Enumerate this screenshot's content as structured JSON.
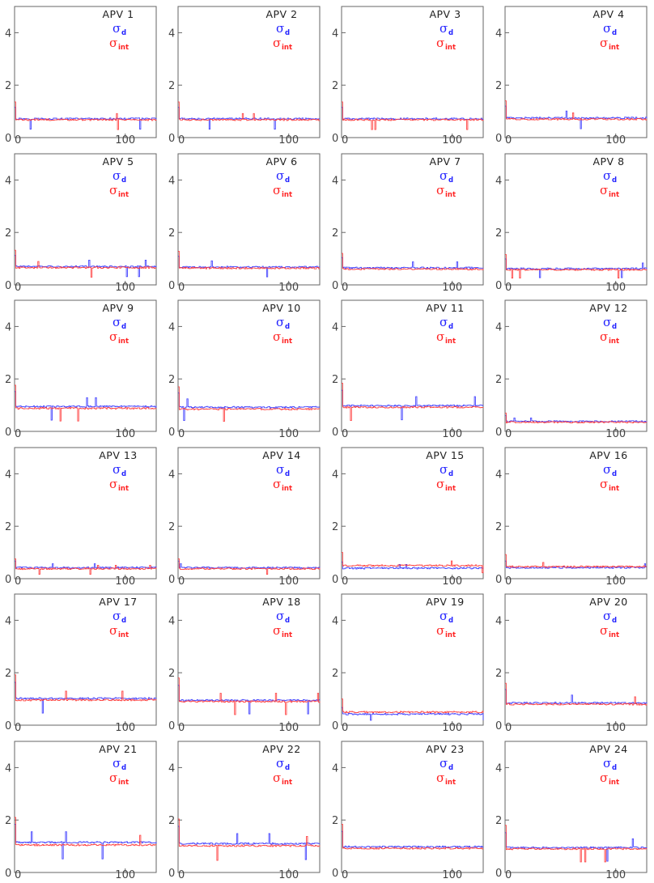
{
  "legend": {
    "sigma_symbol": "σ",
    "d_sub": "d",
    "int_sub": "int",
    "d_color": "#3333ff",
    "int_color": "#ff3333"
  },
  "chart_data": [
    {
      "type": "line",
      "title": "APV 1",
      "ylim": [
        0,
        5
      ],
      "xlim": [
        0,
        128
      ],
      "yticks": [
        "0",
        "2",
        "4"
      ],
      "xticks": [
        "0",
        "100"
      ],
      "series": [
        {
          "name": "σd",
          "color": "#3333ff",
          "baseline": 0.72
        },
        {
          "name": "σint",
          "color": "#ff3333",
          "baseline": 0.68
        }
      ]
    },
    {
      "type": "line",
      "title": "APV 2",
      "ylim": [
        0,
        5
      ],
      "xlim": [
        0,
        128
      ],
      "yticks": [
        "0",
        "2",
        "4"
      ],
      "xticks": [
        "0",
        "100"
      ],
      "series": [
        {
          "name": "σd",
          "color": "#3333ff",
          "baseline": 0.72
        },
        {
          "name": "σint",
          "color": "#ff3333",
          "baseline": 0.68
        }
      ]
    },
    {
      "type": "line",
      "title": "APV 3",
      "ylim": [
        0,
        5
      ],
      "xlim": [
        0,
        128
      ],
      "yticks": [
        "0",
        "2",
        "4"
      ],
      "xticks": [
        "0",
        "100"
      ],
      "series": [
        {
          "name": "σd",
          "color": "#3333ff",
          "baseline": 0.72
        },
        {
          "name": "σint",
          "color": "#ff3333",
          "baseline": 0.68
        }
      ]
    },
    {
      "type": "line",
      "title": "APV 4",
      "ylim": [
        0,
        5
      ],
      "xlim": [
        0,
        128
      ],
      "yticks": [
        "0",
        "2",
        "4"
      ],
      "xticks": [
        "0",
        "100"
      ],
      "series": [
        {
          "name": "σd",
          "color": "#3333ff",
          "baseline": 0.75
        },
        {
          "name": "σint",
          "color": "#ff3333",
          "baseline": 0.7
        }
      ]
    },
    {
      "type": "line",
      "title": "APV 5",
      "ylim": [
        0,
        5
      ],
      "xlim": [
        0,
        128
      ],
      "yticks": [
        "0",
        "2",
        "4"
      ],
      "xticks": [
        "0",
        "100"
      ],
      "series": [
        {
          "name": "σd",
          "color": "#3333ff",
          "baseline": 0.7
        },
        {
          "name": "σint",
          "color": "#ff3333",
          "baseline": 0.66
        }
      ]
    },
    {
      "type": "line",
      "title": "APV 6",
      "ylim": [
        0,
        5
      ],
      "xlim": [
        0,
        128
      ],
      "yticks": [
        "0",
        "2",
        "4"
      ],
      "xticks": [
        "0",
        "100"
      ],
      "series": [
        {
          "name": "σd",
          "color": "#3333ff",
          "baseline": 0.68
        },
        {
          "name": "σint",
          "color": "#ff3333",
          "baseline": 0.64
        }
      ]
    },
    {
      "type": "line",
      "title": "APV 7",
      "ylim": [
        0,
        5
      ],
      "xlim": [
        0,
        128
      ],
      "yticks": [
        "0",
        "2",
        "4"
      ],
      "xticks": [
        "0",
        "100"
      ],
      "series": [
        {
          "name": "σd",
          "color": "#3333ff",
          "baseline": 0.65
        },
        {
          "name": "σint",
          "color": "#ff3333",
          "baseline": 0.6
        }
      ]
    },
    {
      "type": "line",
      "title": "APV 8",
      "ylim": [
        0,
        5
      ],
      "xlim": [
        0,
        128
      ],
      "yticks": [
        "0",
        "2",
        "4"
      ],
      "xticks": [
        "0",
        "100"
      ],
      "series": [
        {
          "name": "σd",
          "color": "#3333ff",
          "baseline": 0.62
        },
        {
          "name": "σint",
          "color": "#ff3333",
          "baseline": 0.58
        }
      ]
    },
    {
      "type": "line",
      "title": "APV 9",
      "ylim": [
        0,
        5
      ],
      "xlim": [
        0,
        128
      ],
      "yticks": [
        "0",
        "2",
        "4"
      ],
      "xticks": [
        "0",
        "100"
      ],
      "series": [
        {
          "name": "σd",
          "color": "#3333ff",
          "baseline": 0.95
        },
        {
          "name": "σint",
          "color": "#ff3333",
          "baseline": 0.88
        }
      ]
    },
    {
      "type": "line",
      "title": "APV 10",
      "ylim": [
        0,
        5
      ],
      "xlim": [
        0,
        128
      ],
      "yticks": [
        "0",
        "2",
        "4"
      ],
      "xticks": [
        "0",
        "100"
      ],
      "series": [
        {
          "name": "σd",
          "color": "#3333ff",
          "baseline": 0.92
        },
        {
          "name": "σint",
          "color": "#ff3333",
          "baseline": 0.85
        }
      ]
    },
    {
      "type": "line",
      "title": "APV 11",
      "ylim": [
        0,
        5
      ],
      "xlim": [
        0,
        128
      ],
      "yticks": [
        "0",
        "2",
        "4"
      ],
      "xticks": [
        "0",
        "100"
      ],
      "series": [
        {
          "name": "σd",
          "color": "#3333ff",
          "baseline": 0.98
        },
        {
          "name": "σint",
          "color": "#ff3333",
          "baseline": 0.92
        }
      ]
    },
    {
      "type": "line",
      "title": "APV 12",
      "ylim": [
        0,
        5
      ],
      "xlim": [
        0,
        128
      ],
      "yticks": [
        "0",
        "2",
        "4"
      ],
      "xticks": [
        "0",
        "100"
      ],
      "series": [
        {
          "name": "σd",
          "color": "#3333ff",
          "baseline": 0.38
        },
        {
          "name": "σint",
          "color": "#ff3333",
          "baseline": 0.35
        }
      ]
    },
    {
      "type": "line",
      "title": "APV 13",
      "ylim": [
        0,
        5
      ],
      "xlim": [
        0,
        128
      ],
      "yticks": [
        "0",
        "2",
        "4"
      ],
      "xticks": [
        "0",
        "100"
      ],
      "series": [
        {
          "name": "σd",
          "color": "#3333ff",
          "baseline": 0.42
        },
        {
          "name": "σint",
          "color": "#ff3333",
          "baseline": 0.38
        }
      ]
    },
    {
      "type": "line",
      "title": "APV 14",
      "ylim": [
        0,
        5
      ],
      "xlim": [
        0,
        128
      ],
      "yticks": [
        "0",
        "2",
        "4"
      ],
      "xticks": [
        "0",
        "100"
      ],
      "series": [
        {
          "name": "σd",
          "color": "#3333ff",
          "baseline": 0.42
        },
        {
          "name": "σint",
          "color": "#ff3333",
          "baseline": 0.38
        }
      ]
    },
    {
      "type": "line",
      "title": "APV 15",
      "ylim": [
        0,
        5
      ],
      "xlim": [
        0,
        128
      ],
      "yticks": [
        "0",
        "2",
        "4"
      ],
      "xticks": [
        "0",
        "100"
      ],
      "series": [
        {
          "name": "σd",
          "color": "#3333ff",
          "baseline": 0.4
        },
        {
          "name": "σint",
          "color": "#ff3333",
          "baseline": 0.5
        }
      ]
    },
    {
      "type": "line",
      "title": "APV 16",
      "ylim": [
        0,
        5
      ],
      "xlim": [
        0,
        128
      ],
      "yticks": [
        "0",
        "2",
        "4"
      ],
      "xticks": [
        "0",
        "100"
      ],
      "series": [
        {
          "name": "σd",
          "color": "#3333ff",
          "baseline": 0.42
        },
        {
          "name": "σint",
          "color": "#ff3333",
          "baseline": 0.46
        }
      ]
    },
    {
      "type": "line",
      "title": "APV 17",
      "ylim": [
        0,
        5
      ],
      "xlim": [
        0,
        128
      ],
      "yticks": [
        "0",
        "2",
        "4"
      ],
      "xticks": [
        "0",
        "100"
      ],
      "series": [
        {
          "name": "σd",
          "color": "#3333ff",
          "baseline": 1.02
        },
        {
          "name": "σint",
          "color": "#ff3333",
          "baseline": 0.96
        }
      ]
    },
    {
      "type": "line",
      "title": "APV 18",
      "ylim": [
        0,
        5
      ],
      "xlim": [
        0,
        128
      ],
      "yticks": [
        "0",
        "2",
        "4"
      ],
      "xticks": [
        "0",
        "100"
      ],
      "series": [
        {
          "name": "σd",
          "color": "#3333ff",
          "baseline": 0.95
        },
        {
          "name": "σint",
          "color": "#ff3333",
          "baseline": 0.9
        }
      ]
    },
    {
      "type": "line",
      "title": "APV 19",
      "ylim": [
        0,
        5
      ],
      "xlim": [
        0,
        128
      ],
      "yticks": [
        "0",
        "2",
        "4"
      ],
      "xticks": [
        "0",
        "100"
      ],
      "series": [
        {
          "name": "σd",
          "color": "#3333ff",
          "baseline": 0.42
        },
        {
          "name": "σint",
          "color": "#ff3333",
          "baseline": 0.5
        }
      ]
    },
    {
      "type": "line",
      "title": "APV 20",
      "ylim": [
        0,
        5
      ],
      "xlim": [
        0,
        128
      ],
      "yticks": [
        "0",
        "2",
        "4"
      ],
      "xticks": [
        "0",
        "100"
      ],
      "series": [
        {
          "name": "σd",
          "color": "#3333ff",
          "baseline": 0.85
        },
        {
          "name": "σint",
          "color": "#ff3333",
          "baseline": 0.8
        }
      ]
    },
    {
      "type": "line",
      "title": "APV 21",
      "ylim": [
        0,
        5
      ],
      "xlim": [
        0,
        128
      ],
      "yticks": [
        "0",
        "2",
        "4"
      ],
      "xticks": [
        "0",
        "100"
      ],
      "series": [
        {
          "name": "σd",
          "color": "#3333ff",
          "baseline": 1.15
        },
        {
          "name": "σint",
          "color": "#ff3333",
          "baseline": 1.05
        }
      ]
    },
    {
      "type": "line",
      "title": "APV 22",
      "ylim": [
        0,
        5
      ],
      "xlim": [
        0,
        128
      ],
      "yticks": [
        "0",
        "2",
        "4"
      ],
      "xticks": [
        "0",
        "100"
      ],
      "series": [
        {
          "name": "σd",
          "color": "#3333ff",
          "baseline": 1.1
        },
        {
          "name": "σint",
          "color": "#ff3333",
          "baseline": 1.02
        }
      ]
    },
    {
      "type": "line",
      "title": "APV 23",
      "ylim": [
        0,
        5
      ],
      "xlim": [
        0,
        128
      ],
      "yticks": [
        "0",
        "2",
        "4"
      ],
      "xticks": [
        "0",
        "100"
      ],
      "series": [
        {
          "name": "σd",
          "color": "#3333ff",
          "baseline": 0.98
        },
        {
          "name": "σint",
          "color": "#ff3333",
          "baseline": 0.92
        }
      ]
    },
    {
      "type": "line",
      "title": "APV 24",
      "ylim": [
        0,
        5
      ],
      "xlim": [
        0,
        128
      ],
      "yticks": [
        "0",
        "2",
        "4"
      ],
      "xticks": [
        "0",
        "100"
      ],
      "series": [
        {
          "name": "σd",
          "color": "#3333ff",
          "baseline": 0.95
        },
        {
          "name": "σint",
          "color": "#ff3333",
          "baseline": 0.9
        }
      ]
    }
  ]
}
